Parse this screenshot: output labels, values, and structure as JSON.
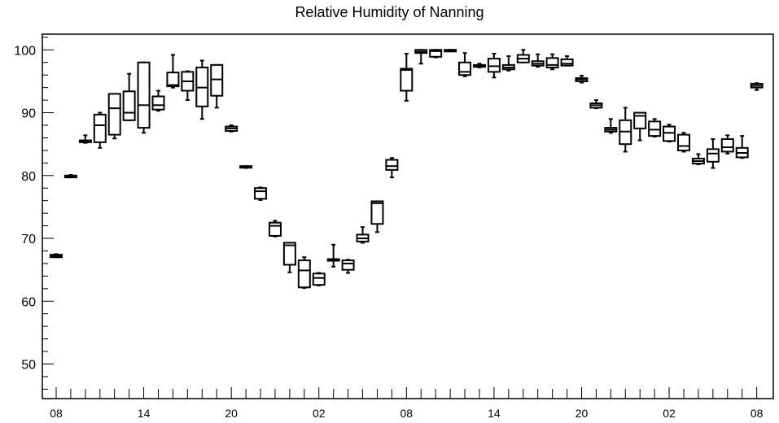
{
  "chart_data": {
    "type": "box",
    "title": "Relative Humidity of Nanning",
    "xlabel": "",
    "ylabel": "",
    "ylim": [
      44.5,
      102.5
    ],
    "y_ticks": [
      50,
      60,
      70,
      80,
      90,
      100
    ],
    "x_ticks": [
      {
        "index": 0,
        "label": "08"
      },
      {
        "index": 6,
        "label": "14"
      },
      {
        "index": 12,
        "label": "20"
      },
      {
        "index": 18,
        "label": "02"
      },
      {
        "index": 24,
        "label": "08"
      },
      {
        "index": 30,
        "label": "14"
      },
      {
        "index": 36,
        "label": "20"
      },
      {
        "index": 42,
        "label": "02"
      },
      {
        "index": 48,
        "label": "08"
      }
    ],
    "boxes": [
      {
        "i": 0,
        "min": 67.0,
        "q1": 67.0,
        "median": 67.2,
        "q3": 67.4,
        "max": 67.5
      },
      {
        "i": 1,
        "min": 79.7,
        "q1": 79.7,
        "median": 79.8,
        "q3": 80.0,
        "max": 80.1
      },
      {
        "i": 2,
        "min": 85.2,
        "q1": 85.3,
        "median": 85.5,
        "q3": 85.6,
        "max": 86.4
      },
      {
        "i": 3,
        "min": 84.4,
        "q1": 85.3,
        "median": 88.0,
        "q3": 89.7,
        "max": 90.0
      },
      {
        "i": 4,
        "min": 85.9,
        "q1": 86.5,
        "median": 90.7,
        "q3": 93.0,
        "max": 93.0
      },
      {
        "i": 5,
        "min": 88.8,
        "q1": 88.8,
        "median": 90.0,
        "q3": 93.4,
        "max": 96.2
      },
      {
        "i": 6,
        "min": 86.8,
        "q1": 87.6,
        "median": 91.2,
        "q3": 98.0,
        "max": 98.0
      },
      {
        "i": 7,
        "min": 90.3,
        "q1": 90.5,
        "median": 91.2,
        "q3": 92.6,
        "max": 93.5
      },
      {
        "i": 8,
        "min": 94.0,
        "q1": 94.2,
        "median": 94.4,
        "q3": 96.4,
        "max": 99.2
      },
      {
        "i": 9,
        "min": 92.0,
        "q1": 93.5,
        "median": 95.0,
        "q3": 96.5,
        "max": 96.6
      },
      {
        "i": 10,
        "min": 89.0,
        "q1": 91.0,
        "median": 94.0,
        "q3": 97.2,
        "max": 98.3
      },
      {
        "i": 11,
        "min": 90.8,
        "q1": 92.7,
        "median": 95.3,
        "q3": 97.6,
        "max": 97.6
      },
      {
        "i": 12,
        "min": 87.0,
        "q1": 87.1,
        "median": 87.5,
        "q3": 87.8,
        "max": 88.0
      },
      {
        "i": 13,
        "min": 81.2,
        "q1": 81.3,
        "median": 81.4,
        "q3": 81.5,
        "max": 81.5
      },
      {
        "i": 14,
        "min": 76.1,
        "q1": 76.3,
        "median": 77.5,
        "q3": 78.0,
        "max": 78.1
      },
      {
        "i": 15,
        "min": 70.3,
        "q1": 70.4,
        "median": 72.0,
        "q3": 72.5,
        "max": 72.8
      },
      {
        "i": 16,
        "min": 64.6,
        "q1": 65.8,
        "median": 68.9,
        "q3": 69.3,
        "max": 69.3
      },
      {
        "i": 17,
        "min": 62.1,
        "q1": 62.2,
        "median": 64.9,
        "q3": 66.5,
        "max": 67.0
      },
      {
        "i": 18,
        "min": 62.5,
        "q1": 62.6,
        "median": 63.7,
        "q3": 64.4,
        "max": 64.5
      },
      {
        "i": 19,
        "min": 65.5,
        "q1": 66.5,
        "median": 66.6,
        "q3": 66.7,
        "max": 69.0
      },
      {
        "i": 20,
        "min": 64.5,
        "q1": 65.0,
        "median": 66.0,
        "q3": 66.5,
        "max": 66.6
      },
      {
        "i": 21,
        "min": 69.3,
        "q1": 69.5,
        "median": 70.0,
        "q3": 70.6,
        "max": 71.8
      },
      {
        "i": 22,
        "min": 71.0,
        "q1": 72.3,
        "median": 75.6,
        "q3": 75.9,
        "max": 75.9
      },
      {
        "i": 23,
        "min": 79.7,
        "q1": 80.9,
        "median": 81.5,
        "q3": 82.5,
        "max": 82.8
      },
      {
        "i": 24,
        "min": 91.9,
        "q1": 93.5,
        "median": 96.8,
        "q3": 97.0,
        "max": 99.4
      },
      {
        "i": 25,
        "min": 97.8,
        "q1": 99.5,
        "median": 99.7,
        "q3": 100.0,
        "max": 100.0
      },
      {
        "i": 26,
        "min": 98.8,
        "q1": 98.9,
        "median": 99.8,
        "q3": 100.0,
        "max": 100.0
      },
      {
        "i": 27,
        "min": 99.9,
        "q1": 100.0,
        "median": 100.0,
        "q3": 100.0,
        "max": 100.0
      },
      {
        "i": 28,
        "min": 95.8,
        "q1": 96.0,
        "median": 96.5,
        "q3": 98.0,
        "max": 99.5
      },
      {
        "i": 29,
        "min": 97.2,
        "q1": 97.3,
        "median": 97.5,
        "q3": 97.6,
        "max": 97.8
      },
      {
        "i": 30,
        "min": 95.6,
        "q1": 96.5,
        "median": 97.4,
        "q3": 98.6,
        "max": 99.4
      },
      {
        "i": 31,
        "min": 96.7,
        "q1": 96.9,
        "median": 97.2,
        "q3": 97.6,
        "max": 99.0
      },
      {
        "i": 32,
        "min": 98.0,
        "q1": 98.0,
        "median": 98.6,
        "q3": 99.2,
        "max": 100.0
      },
      {
        "i": 33,
        "min": 97.3,
        "q1": 97.5,
        "median": 97.8,
        "q3": 98.2,
        "max": 99.3
      },
      {
        "i": 34,
        "min": 96.9,
        "q1": 97.2,
        "median": 97.6,
        "q3": 98.7,
        "max": 99.3
      },
      {
        "i": 35,
        "min": 97.5,
        "q1": 97.5,
        "median": 97.8,
        "q3": 98.5,
        "max": 99.0
      },
      {
        "i": 36,
        "min": 94.8,
        "q1": 95.0,
        "median": 95.3,
        "q3": 95.5,
        "max": 95.9
      },
      {
        "i": 37,
        "min": 90.7,
        "q1": 90.8,
        "median": 91.2,
        "q3": 91.5,
        "max": 92.0
      },
      {
        "i": 38,
        "min": 86.8,
        "q1": 87.0,
        "median": 87.3,
        "q3": 87.6,
        "max": 89.0
      },
      {
        "i": 39,
        "min": 83.8,
        "q1": 85.0,
        "median": 87.0,
        "q3": 88.8,
        "max": 90.8
      },
      {
        "i": 40,
        "min": 85.6,
        "q1": 87.5,
        "median": 89.5,
        "q3": 90.0,
        "max": 90.0
      },
      {
        "i": 41,
        "min": 86.2,
        "q1": 86.3,
        "median": 87.3,
        "q3": 88.6,
        "max": 89.0
      },
      {
        "i": 42,
        "min": 85.4,
        "q1": 85.5,
        "median": 86.8,
        "q3": 87.8,
        "max": 88.1
      },
      {
        "i": 43,
        "min": 83.8,
        "q1": 84.0,
        "median": 84.7,
        "q3": 86.5,
        "max": 86.8
      },
      {
        "i": 44,
        "min": 81.8,
        "q1": 81.9,
        "median": 82.3,
        "q3": 82.7,
        "max": 83.4
      },
      {
        "i": 45,
        "min": 81.2,
        "q1": 82.2,
        "median": 83.5,
        "q3": 84.2,
        "max": 85.8
      },
      {
        "i": 46,
        "min": 83.5,
        "q1": 83.8,
        "median": 84.5,
        "q3": 85.8,
        "max": 86.4
      },
      {
        "i": 47,
        "min": 82.8,
        "q1": 82.9,
        "median": 83.6,
        "q3": 84.4,
        "max": 86.3
      },
      {
        "i": 48,
        "min": 93.6,
        "q1": 94.0,
        "median": 94.3,
        "q3": 94.6,
        "max": 94.7
      }
    ]
  }
}
